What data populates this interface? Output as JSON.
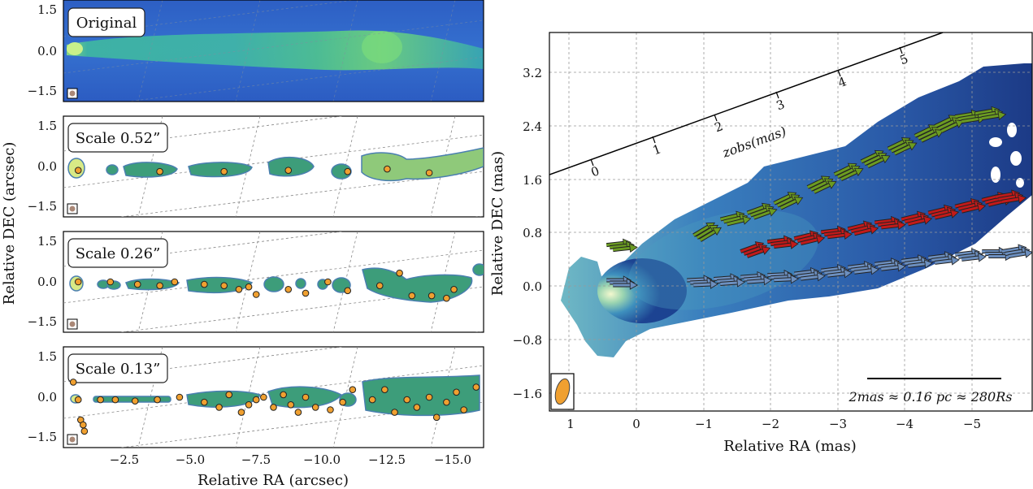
{
  "figure": {
    "left_panels": [
      {
        "label": "Original"
      },
      {
        "label": "Scale 0.52”"
      },
      {
        "label": "Scale 0.26”"
      },
      {
        "label": "Scale 0.13”"
      }
    ],
    "left_ylabel": "Relative DEC (arcsec)",
    "left_xlabel": "Relative RA (arcsec)",
    "left_yticks": [
      "1.5",
      "0.0",
      "−1.5"
    ],
    "left_xticks": [
      "−2.5",
      "−5.0",
      "−7.5",
      "−10.0",
      "−12.5",
      "−15.0"
    ],
    "right_xlabel": "Relative RA (mas)",
    "right_ylabel": "Relative DEC (mas)",
    "right_xticks": [
      "1",
      "0",
      "−1",
      "−2",
      "−3",
      "−4",
      "−5"
    ],
    "right_yticks": [
      "3.2",
      "2.4",
      "1.6",
      "0.8",
      "0.0",
      "−0.8",
      "−1.6"
    ],
    "zobs_label": "zobs(mas)",
    "zobs_ticks": [
      "0",
      "1",
      "2",
      "3",
      "4",
      "5"
    ],
    "scalebar_label": "2mas ≈ 0.16 pc ≈ 280Rs"
  },
  "colors": {
    "green_arrows": "#6b9b22",
    "red_arrows": "#c21a1a",
    "blue_arrows": "#6c8fbf",
    "beam": "#f0a030",
    "component": "#f0a030"
  },
  "chart_data": [
    {
      "type": "image",
      "title": "Original",
      "xlabel": "Relative RA (arcsec)",
      "ylabel": "Relative DEC (arcsec)",
      "xlim": [
        0.5,
        -16.5
      ],
      "ylim": [
        -2.0,
        2.0
      ]
    },
    {
      "type": "scatter",
      "title": "Scale 0.52”",
      "xlabel": "Relative RA (arcsec)",
      "ylabel": "Relative DEC (arcsec)",
      "xlim": [
        0.5,
        -16.5
      ],
      "ylim": [
        -2.0,
        2.0
      ],
      "x": [
        -0.1,
        -3.4,
        -6.0,
        -8.6,
        -11.0,
        -12.6,
        -14.3
      ],
      "y": [
        -0.15,
        -0.2,
        -0.2,
        -0.15,
        -0.2,
        -0.1,
        -0.25
      ]
    },
    {
      "type": "scatter",
      "title": "Scale 0.26”",
      "xlabel": "Relative RA (arcsec)",
      "ylabel": "Relative DEC (arcsec)",
      "xlim": [
        0.5,
        -16.5
      ],
      "ylim": [
        -2.0,
        2.0
      ],
      "x": [
        -0.1,
        -1.4,
        -2.5,
        -3.4,
        -4.0,
        -5.2,
        -6.0,
        -6.6,
        -7.0,
        -7.3,
        -8.6,
        -9.3,
        -10.2,
        -11.0,
        -12.3,
        -13.1,
        -13.6,
        -14.4,
        -15.0,
        -15.3
      ],
      "y": [
        0.0,
        0.0,
        -0.1,
        -0.15,
        0.0,
        -0.1,
        -0.15,
        -0.3,
        -0.2,
        -0.5,
        -0.3,
        -0.45,
        0.0,
        -0.35,
        -0.15,
        0.35,
        -0.55,
        -0.55,
        -0.65,
        -0.3
      ]
    },
    {
      "type": "scatter",
      "title": "Scale 0.13”",
      "xlabel": "Relative RA (arcsec)",
      "ylabel": "Relative DEC (arcsec)",
      "xlim": [
        0.5,
        -16.5
      ],
      "ylim": [
        -2.0,
        2.0
      ],
      "x": [
        -0.1,
        0.1,
        -0.2,
        -0.3,
        -0.35,
        -1.0,
        -1.6,
        -2.4,
        -3.3,
        -4.2,
        -5.2,
        -5.8,
        -6.2,
        -6.7,
        -7.0,
        -7.3,
        -7.6,
        -8.0,
        -8.4,
        -8.7,
        -9.0,
        -9.3,
        -9.7,
        -10.3,
        -10.8,
        -11.2,
        -12.0,
        -12.5,
        -12.9,
        -13.4,
        -13.8,
        -14.3,
        -14.6,
        -15.0,
        -15.4,
        -15.7,
        -16.2
      ],
      "y": [
        -0.1,
        0.6,
        -0.9,
        -1.1,
        -1.35,
        -0.1,
        -0.1,
        -0.15,
        -0.1,
        0.0,
        -0.2,
        -0.4,
        0.1,
        -0.6,
        -0.3,
        -0.1,
        0.0,
        -0.4,
        0.1,
        -0.3,
        -0.6,
        0.0,
        -0.4,
        -0.5,
        -0.2,
        0.3,
        -0.1,
        0.3,
        -0.6,
        -0.1,
        -0.4,
        0.0,
        -0.8,
        -0.2,
        0.2,
        -0.5,
        0.4
      ]
    },
    {
      "type": "image",
      "title": "",
      "xlabel": "Relative RA (mas)",
      "ylabel": "Relative DEC (mas)",
      "xlim": [
        1.3,
        -5.9
      ],
      "ylim": [
        -2.0,
        3.9
      ],
      "series": [
        {
          "color": "green",
          "x": [
            0.4,
            -0.9,
            -1.3,
            -1.7,
            -2.1,
            -2.6,
            -3.0,
            -3.4,
            -3.8,
            -4.2,
            -4.5,
            -4.8,
            -5.1
          ],
          "y": [
            0.55,
            0.7,
            0.95,
            1.05,
            1.2,
            1.45,
            1.65,
            1.85,
            2.05,
            2.25,
            2.4,
            2.55,
            2.6
          ]
        },
        {
          "color": "red",
          "x": [
            -1.6,
            -2.0,
            -2.4,
            -2.8,
            -3.2,
            -3.6,
            -4.0,
            -4.4,
            -4.8,
            -5.2,
            -5.4
          ],
          "y": [
            0.45,
            0.6,
            0.65,
            0.75,
            0.8,
            0.9,
            0.95,
            1.05,
            1.15,
            1.25,
            1.3
          ]
        },
        {
          "color": "blue",
          "x": [
            0.4,
            -0.8,
            -1.2,
            -1.6,
            -2.0,
            -2.4,
            -2.8,
            -3.2,
            -3.6,
            -4.0,
            -4.4,
            -4.8,
            -5.2,
            -5.5
          ],
          "y": [
            0.0,
            0.0,
            0.02,
            0.05,
            0.08,
            0.1,
            0.15,
            0.2,
            0.25,
            0.3,
            0.35,
            0.4,
            0.45,
            0.45
          ]
        }
      ]
    }
  ]
}
